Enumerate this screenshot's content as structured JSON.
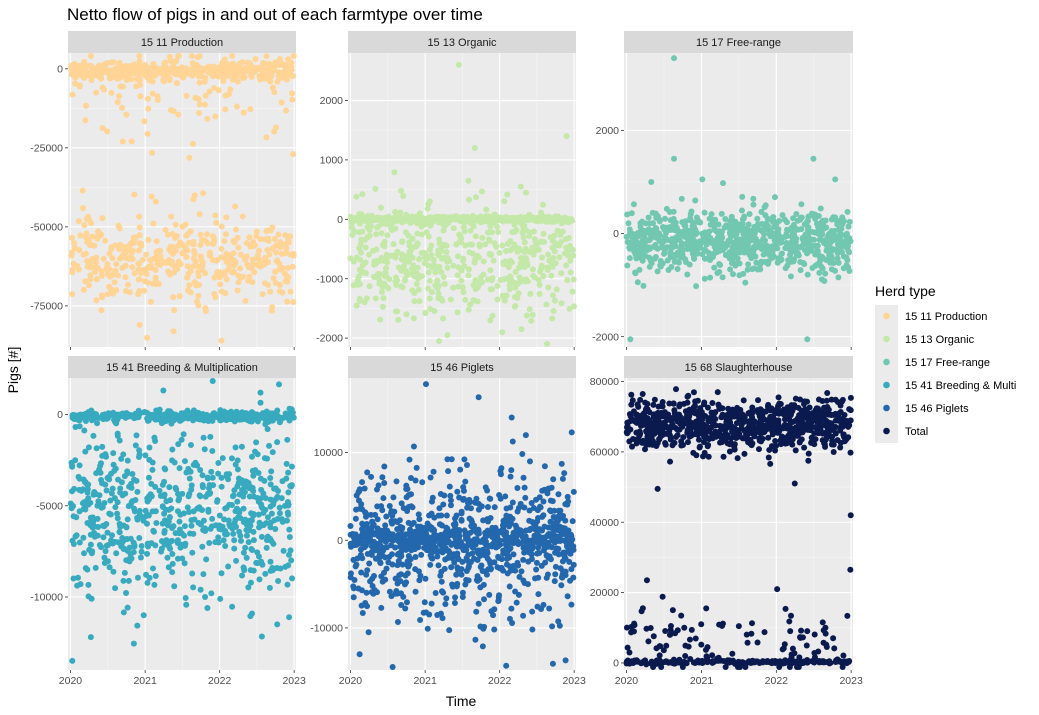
{
  "chart_data": {
    "type": "scatter",
    "title": "Netto flow of pigs in and out of each farmtype over time",
    "xlabel": "Time",
    "ylabel": "Pigs [#]",
    "x_ticks": [
      "2020",
      "2021",
      "2022",
      "2023"
    ],
    "xlim": [
      "2019-12-20",
      "2023-01-10"
    ],
    "grid": true,
    "legend": {
      "title": "Herd type",
      "position": "right",
      "entries": [
        {
          "label": "15 11 Production",
          "color": "#FFD494"
        },
        {
          "label": "15 13 Organic",
          "color": "#C4E8A8"
        },
        {
          "label": "15 17 Free-range",
          "color": "#72C7B0"
        },
        {
          "label": "15 41 Breeding & Multi",
          "color": "#38AABF"
        },
        {
          "label": "15 46 Piglets",
          "color": "#2367AD"
        },
        {
          "label": "Total",
          "color": "#0B1A4E"
        }
      ]
    },
    "panels": [
      {
        "strip": "15 11 Production",
        "color": "#FFD494",
        "ylim": [
          -88000,
          5000
        ],
        "y_ticks": [
          0,
          -25000,
          -50000,
          -75000
        ],
        "y_tick_labels": [
          "0",
          "-25000",
          "-50000",
          "-75000"
        ],
        "clusters": [
          {
            "center": -500,
            "spread": 1500,
            "count": 380
          },
          {
            "center": -8000,
            "spread": 8000,
            "count": 90
          },
          {
            "center": -60000,
            "spread": 6500,
            "count": 430
          }
        ],
        "points": [
          {
            "x": "2022-12-27",
            "y": -27000
          },
          {
            "x": "2020-03-01",
            "y": -38500
          },
          {
            "x": "2021-09-01",
            "y": -40000
          },
          {
            "x": "2020-12-05",
            "y": -81000
          },
          {
            "x": "2021-05-20",
            "y": -83000
          },
          {
            "x": "2022-01-10",
            "y": -86000
          }
        ]
      },
      {
        "strip": "15 13 Organic",
        "color": "#C4E8A8",
        "ylim": [
          -2150,
          2800
        ],
        "y_ticks": [
          2000,
          1000,
          0,
          -1000,
          -2000
        ],
        "y_tick_labels": [
          "2000",
          "1000",
          "0",
          "-1000",
          "-2000"
        ],
        "clusters": [
          {
            "center": 0,
            "spread": 25,
            "count": 420
          },
          {
            "center": -650,
            "spread": 450,
            "count": 520
          }
        ],
        "points": [
          {
            "x": "2021-06-15",
            "y": 2600
          },
          {
            "x": "2021-09-01",
            "y": 1200
          },
          {
            "x": "2022-11-25",
            "y": 1400
          },
          {
            "x": "2021-08-01",
            "y": 650
          },
          {
            "x": "2022-04-15",
            "y": 550
          },
          {
            "x": "2022-05-10",
            "y": 450
          },
          {
            "x": "2021-03-10",
            "y": -2050
          },
          {
            "x": "2021-04-20",
            "y": -1950
          }
        ]
      },
      {
        "strip": "15 17 Free-range",
        "color": "#72C7B0",
        "ylim": [
          -2200,
          3500
        ],
        "y_ticks": [
          2000,
          0,
          -2000
        ],
        "y_tick_labels": [
          "2000",
          "0",
          "-2000"
        ],
        "clusters": [
          {
            "center": -150,
            "spread": 300,
            "count": 800
          }
        ],
        "points": [
          {
            "x": "2020-08-20",
            "y": 3400
          },
          {
            "x": "2020-08-20",
            "y": 1450
          },
          {
            "x": "2022-07-01",
            "y": 1450
          },
          {
            "x": "2020-01-20",
            "y": -2050
          },
          {
            "x": "2022-06-01",
            "y": -2050
          },
          {
            "x": "2021-01-05",
            "y": 1050
          },
          {
            "x": "2020-05-01",
            "y": 1000
          },
          {
            "x": "2022-10-15",
            "y": 1050
          }
        ]
      },
      {
        "strip": "15 41 Breeding & Multiplication",
        "color": "#38AABF",
        "ylim": [
          -14000,
          2000
        ],
        "y_ticks": [
          0,
          -5000,
          -10000
        ],
        "y_tick_labels": [
          "0",
          "-5000",
          "-10000"
        ],
        "clusters": [
          {
            "center": -100,
            "spread": 150,
            "count": 330
          },
          {
            "center": -5500,
            "spread": 2200,
            "count": 650
          }
        ],
        "points": [
          {
            "x": "2020-01-10",
            "y": -13500
          },
          {
            "x": "2020-04-10",
            "y": -12200
          },
          {
            "x": "2022-10-10",
            "y": -11500
          },
          {
            "x": "2022-07-20",
            "y": 1200
          },
          {
            "x": "2020-12-25",
            "y": -11000
          }
        ]
      },
      {
        "strip": "15 46 Piglets",
        "color": "#2367AD",
        "ylim": [
          -14800,
          18500
        ],
        "y_ticks": [
          10000,
          0,
          -10000
        ],
        "y_tick_labels": [
          "10000",
          "0",
          "-10000"
        ],
        "clusters": [
          {
            "center": 0,
            "spread": 700,
            "count": 300
          },
          {
            "center": -500,
            "spread": 4200,
            "count": 720
          }
        ],
        "points": [
          {
            "x": "2021-01-05",
            "y": 17800
          },
          {
            "x": "2021-09-20",
            "y": 16300
          },
          {
            "x": "2022-03-01",
            "y": 14000
          },
          {
            "x": "2022-11-20",
            "y": -13700
          },
          {
            "x": "2020-02-15",
            "y": -13000
          },
          {
            "x": "2022-12-20",
            "y": 12300
          }
        ]
      },
      {
        "strip": "15 68 Slaughterhouse",
        "color": "#0B1A4E",
        "ylim": [
          -2000,
          81000
        ],
        "y_ticks": [
          80000,
          60000,
          40000,
          20000,
          0
        ],
        "y_tick_labels": [
          "80000",
          "60000",
          "40000",
          "20000",
          "0"
        ],
        "clusters": [
          {
            "center": 67500,
            "spread": 3500,
            "count": 800
          },
          {
            "center": 300,
            "spread": 300,
            "count": 180
          },
          {
            "center": 6000,
            "spread": 5000,
            "count": 110
          }
        ],
        "points": [
          {
            "x": "2022-12-30",
            "y": 42000
          },
          {
            "x": "2022-12-28",
            "y": 26500
          },
          {
            "x": "2020-06-01",
            "y": 49500
          },
          {
            "x": "2022-04-01",
            "y": 51000
          },
          {
            "x": "2020-04-10",
            "y": 23500
          },
          {
            "x": "2022-01-05",
            "y": 21000
          }
        ]
      }
    ]
  }
}
